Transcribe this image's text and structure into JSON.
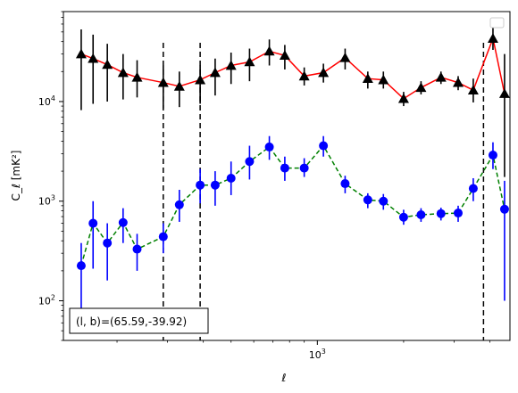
{
  "chart_data": {
    "type": "line",
    "xlabel": "ℓ",
    "ylabel": "C_ℓ [mK²]",
    "xscale": "log",
    "yscale": "log",
    "xlim": [
      130,
      4700
    ],
    "ylim": [
      40,
      80000
    ],
    "x_tick_labels": [
      {
        "value": 1000,
        "base": "10",
        "exp": "3"
      }
    ],
    "y_tick_labels": [
      {
        "value": 100,
        "base": "10",
        "exp": "2"
      },
      {
        "value": 1000,
        "base": "10",
        "exp": "3"
      },
      {
        "value": 10000,
        "base": "10",
        "exp": "4"
      }
    ],
    "vlines": [
      290,
      390,
      3800
    ],
    "legend_placement": "upper right",
    "annotation": "(l, b)=(65.59,-39.92)",
    "series": [
      {
        "line_color": "#ff0000",
        "marker_color": "#000000",
        "line_style": "solid",
        "marker": "triangle",
        "points": [
          {
            "x": 150,
            "y": 30000,
            "lo": 8200,
            "hi": 53000
          },
          {
            "x": 165,
            "y": 27000,
            "lo": 9500,
            "hi": 47000
          },
          {
            "x": 185,
            "y": 23500,
            "lo": 10000,
            "hi": 38000
          },
          {
            "x": 210,
            "y": 19500,
            "lo": 10500,
            "hi": 30000
          },
          {
            "x": 235,
            "y": 17500,
            "lo": 11000,
            "hi": 26000
          },
          {
            "x": 290,
            "y": 15500,
            "lo": 8500,
            "hi": 23000
          },
          {
            "x": 330,
            "y": 14200,
            "lo": 8800,
            "hi": 20000
          },
          {
            "x": 390,
            "y": 16500,
            "lo": 9500,
            "hi": 23000
          },
          {
            "x": 440,
            "y": 19500,
            "lo": 11500,
            "hi": 27000
          },
          {
            "x": 500,
            "y": 23000,
            "lo": 15000,
            "hi": 31000
          },
          {
            "x": 580,
            "y": 25000,
            "lo": 16000,
            "hi": 34000
          },
          {
            "x": 680,
            "y": 32000,
            "lo": 23000,
            "hi": 42000
          },
          {
            "x": 770,
            "y": 29000,
            "lo": 21000,
            "hi": 37000
          },
          {
            "x": 900,
            "y": 18000,
            "lo": 14500,
            "hi": 22000
          },
          {
            "x": 1050,
            "y": 19500,
            "lo": 15500,
            "hi": 24000
          },
          {
            "x": 1250,
            "y": 27500,
            "lo": 21000,
            "hi": 34000
          },
          {
            "x": 1500,
            "y": 17000,
            "lo": 13500,
            "hi": 20000
          },
          {
            "x": 1700,
            "y": 16500,
            "lo": 13500,
            "hi": 20000
          },
          {
            "x": 2000,
            "y": 10700,
            "lo": 9000,
            "hi": 12500
          },
          {
            "x": 2300,
            "y": 13800,
            "lo": 11800,
            "hi": 16000
          },
          {
            "x": 2700,
            "y": 17500,
            "lo": 15000,
            "hi": 20000
          },
          {
            "x": 3100,
            "y": 15500,
            "lo": 13000,
            "hi": 18000
          },
          {
            "x": 3500,
            "y": 13000,
            "lo": 9800,
            "hi": 17000
          },
          {
            "x": 4100,
            "y": 43000,
            "lo": 33000,
            "hi": 55000
          },
          {
            "x": 4500,
            "y": 12000,
            "lo": 1750,
            "hi": 30000
          }
        ]
      },
      {
        "line_color": "#008000",
        "marker_color": "#0000ff",
        "line_style": "dashed",
        "marker": "circle",
        "points": [
          {
            "x": 150,
            "y": 225,
            "lo": 70,
            "hi": 380
          },
          {
            "x": 165,
            "y": 600,
            "lo": 210,
            "hi": 1000
          },
          {
            "x": 185,
            "y": 380,
            "lo": 160,
            "hi": 600
          },
          {
            "x": 210,
            "y": 610,
            "lo": 380,
            "hi": 850
          },
          {
            "x": 235,
            "y": 330,
            "lo": 200,
            "hi": 470
          },
          {
            "x": 290,
            "y": 440,
            "lo": 300,
            "hi": 600
          },
          {
            "x": 330,
            "y": 920,
            "lo": 620,
            "hi": 1300
          },
          {
            "x": 390,
            "y": 1450,
            "lo": 950,
            "hi": 2100
          },
          {
            "x": 440,
            "y": 1450,
            "lo": 900,
            "hi": 2000
          },
          {
            "x": 500,
            "y": 1700,
            "lo": 1150,
            "hi": 2500
          },
          {
            "x": 580,
            "y": 2500,
            "lo": 1650,
            "hi": 3600
          },
          {
            "x": 680,
            "y": 3500,
            "lo": 2600,
            "hi": 4500
          },
          {
            "x": 770,
            "y": 2150,
            "lo": 1600,
            "hi": 2800
          },
          {
            "x": 900,
            "y": 2150,
            "lo": 1750,
            "hi": 2700
          },
          {
            "x": 1050,
            "y": 3600,
            "lo": 2800,
            "hi": 4500
          },
          {
            "x": 1250,
            "y": 1500,
            "lo": 1200,
            "hi": 1800
          },
          {
            "x": 1500,
            "y": 1030,
            "lo": 850,
            "hi": 1200
          },
          {
            "x": 1700,
            "y": 1000,
            "lo": 820,
            "hi": 1180
          },
          {
            "x": 2000,
            "y": 690,
            "lo": 580,
            "hi": 820
          },
          {
            "x": 2300,
            "y": 730,
            "lo": 620,
            "hi": 850
          },
          {
            "x": 2700,
            "y": 750,
            "lo": 640,
            "hi": 860
          },
          {
            "x": 3100,
            "y": 760,
            "lo": 620,
            "hi": 900
          },
          {
            "x": 3500,
            "y": 1340,
            "lo": 1000,
            "hi": 1700
          },
          {
            "x": 4100,
            "y": 2900,
            "lo": 2100,
            "hi": 3900
          },
          {
            "x": 4500,
            "y": 830,
            "lo": 100,
            "hi": 1600
          }
        ]
      }
    ]
  }
}
